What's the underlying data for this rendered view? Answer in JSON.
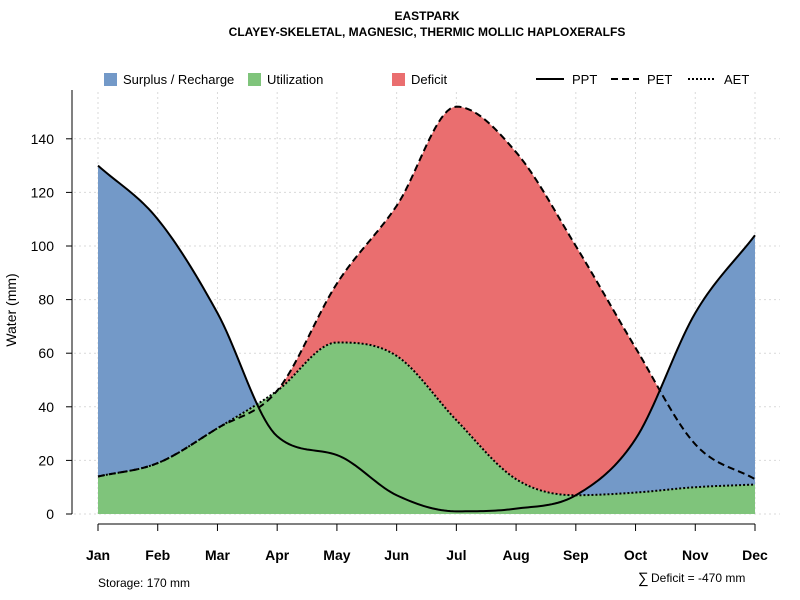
{
  "chart_data": {
    "type": "area",
    "title": "EASTPARK",
    "subtitle": "CLAYEY-SKELETAL, MAGNESIC, THERMIC MOLLIC HAPLOXERALFS",
    "xlabel": "",
    "ylabel": "Water (mm)",
    "ylim": [
      0,
      155
    ],
    "yticks": [
      0,
      20,
      40,
      60,
      80,
      100,
      120,
      140
    ],
    "grid": true,
    "legend_position": "top",
    "categories": [
      "Jan",
      "Feb",
      "Mar",
      "Apr",
      "May",
      "Jun",
      "Jul",
      "Aug",
      "Sep",
      "Oct",
      "Nov",
      "Dec"
    ],
    "x": [
      1,
      2,
      3,
      4,
      5,
      6,
      7,
      8,
      9,
      10,
      11,
      12
    ],
    "series": [
      {
        "name": "PPT",
        "values": [
          130,
          110,
          75,
          29,
          22,
          7,
          1,
          2,
          7,
          28,
          75,
          104
        ]
      },
      {
        "name": "PET",
        "values": [
          14,
          19,
          32,
          46,
          86,
          115,
          152,
          135,
          100,
          62,
          26,
          13
        ]
      },
      {
        "name": "AET",
        "values": [
          14,
          19,
          32,
          46,
          64,
          59,
          35,
          13,
          7,
          8,
          10,
          11
        ]
      }
    ],
    "area_legend": [
      {
        "name": "Surplus / Recharge",
        "color": "#7399c8"
      },
      {
        "name": "Utilization",
        "color": "#7fc47b"
      },
      {
        "name": "Deficit",
        "color": "#ea6e6f"
      }
    ],
    "line_legend": [
      "PPT",
      "PET",
      "AET"
    ],
    "storage_label": "Storage: 170 mm",
    "deficit_label": "Deficit = -470 mm",
    "sum_symbol": "∑"
  }
}
